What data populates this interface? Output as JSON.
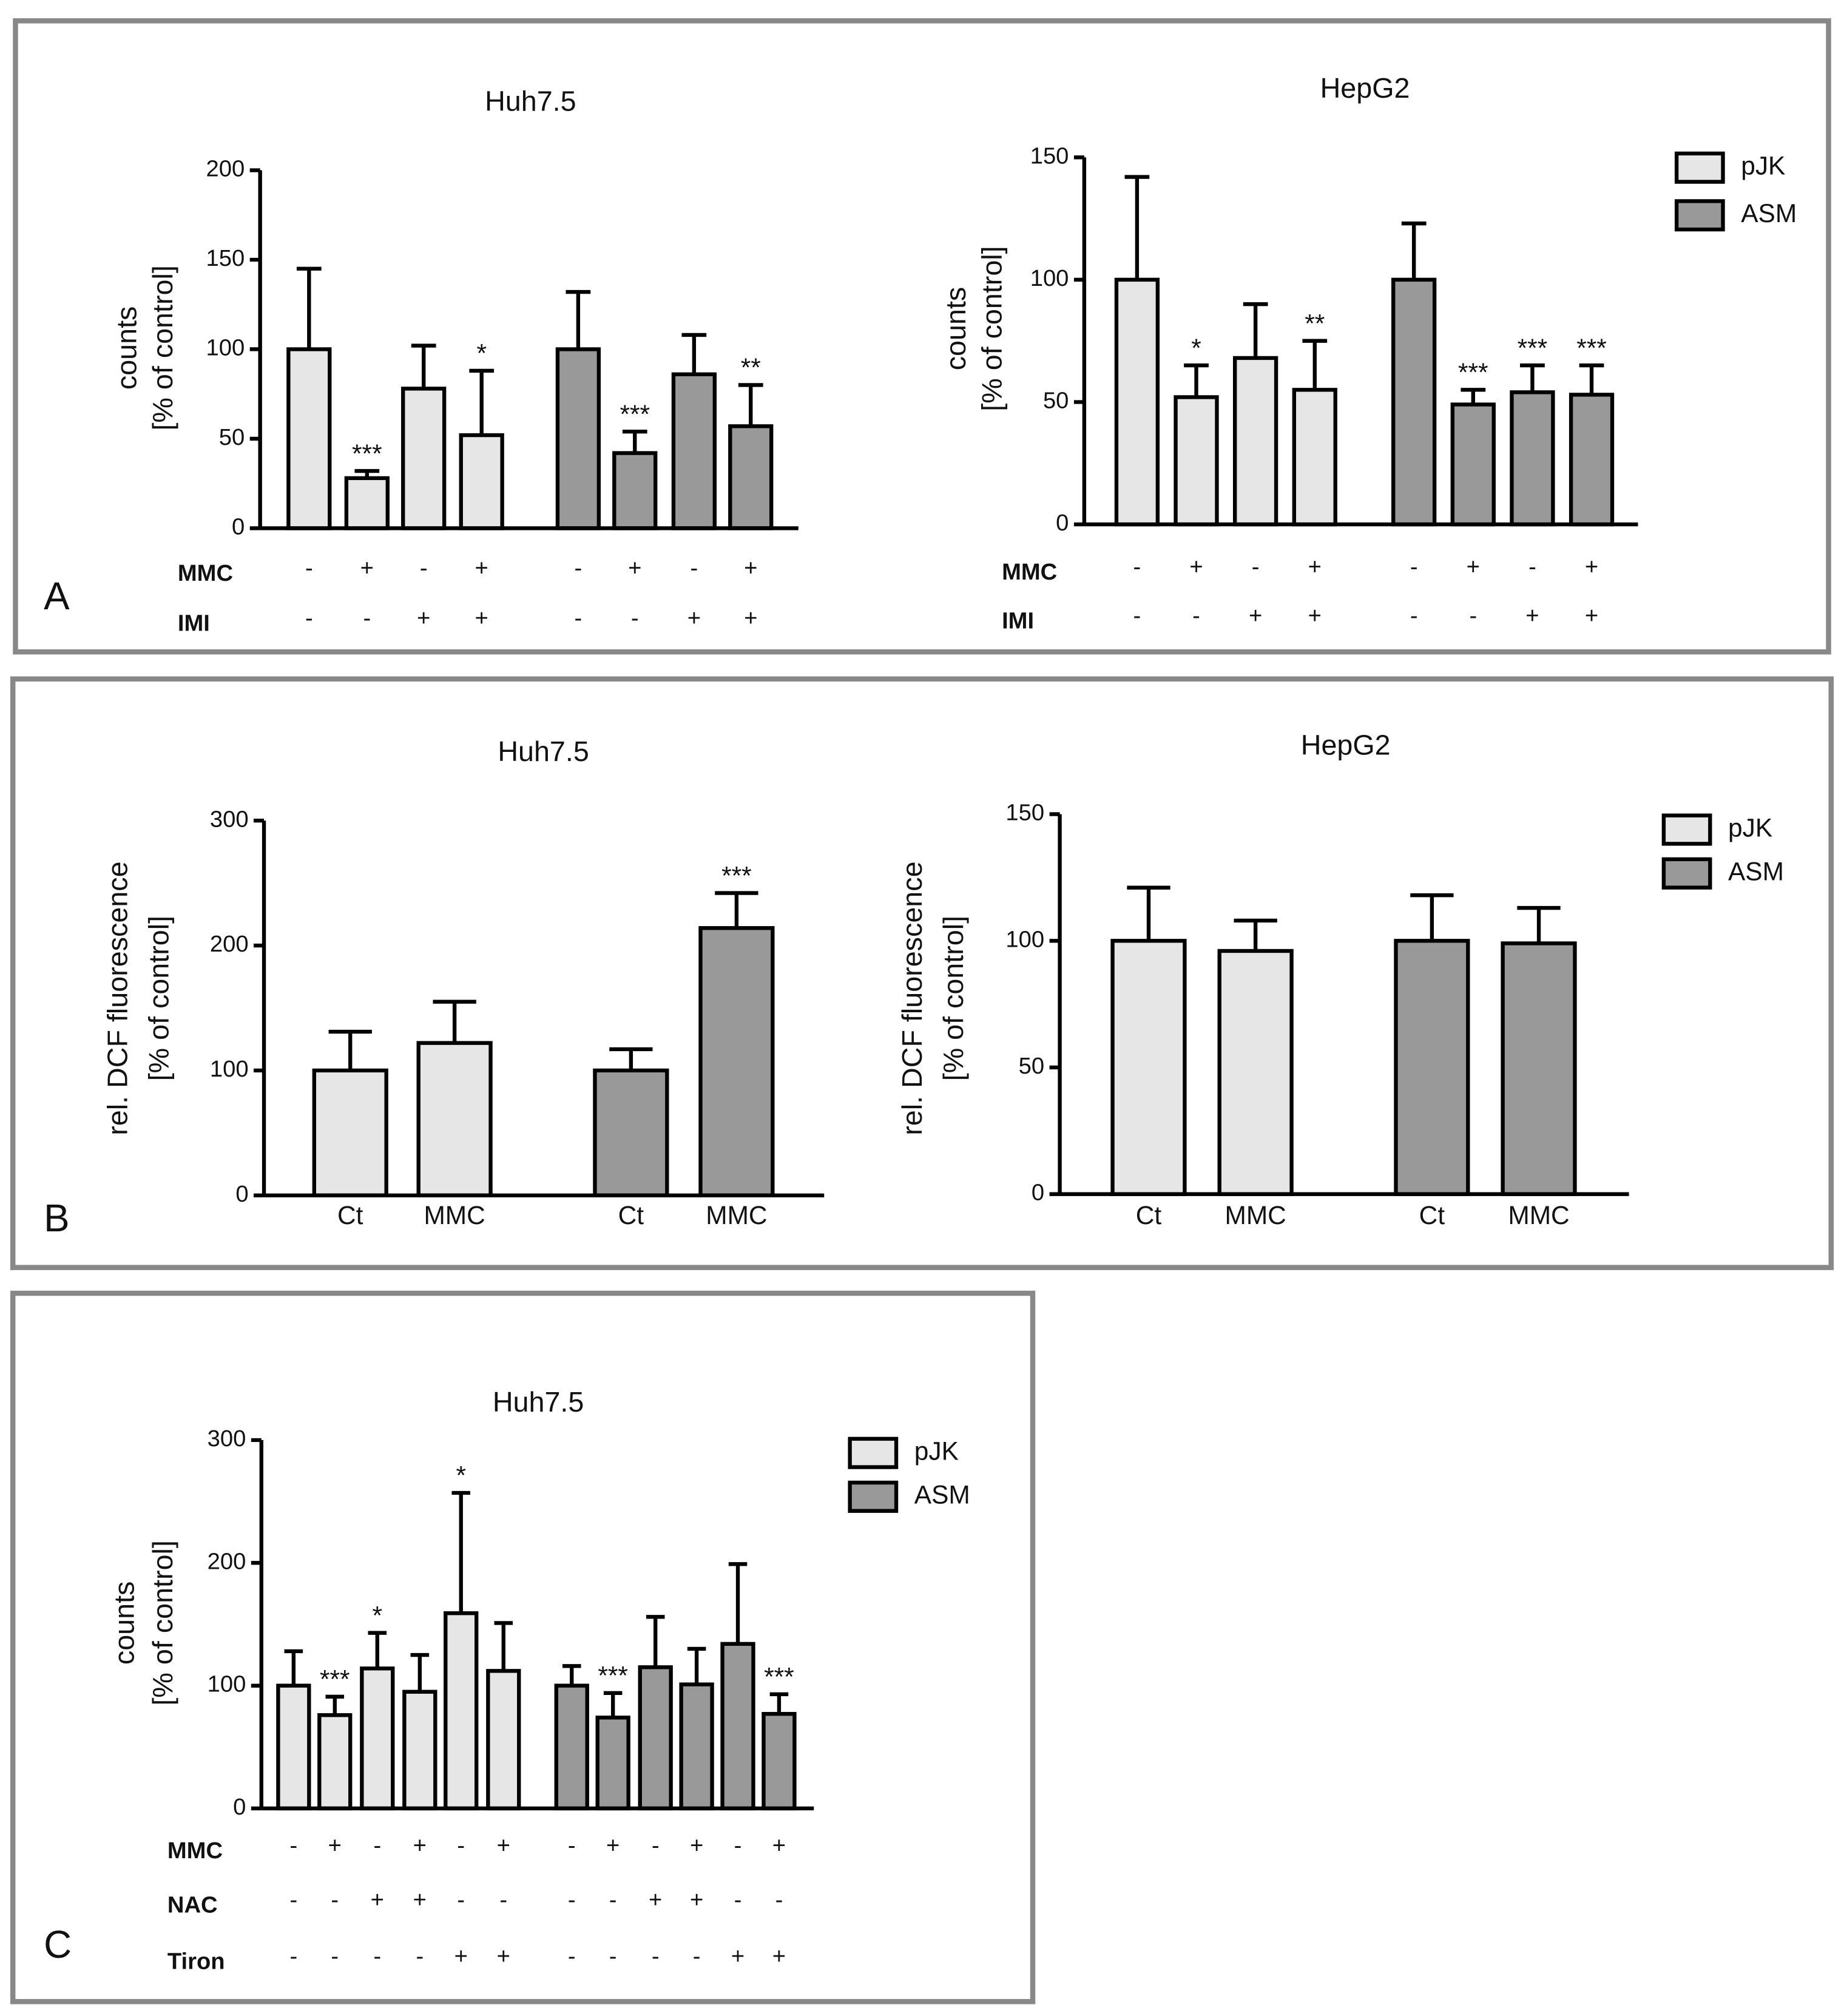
{
  "panels": [
    "A",
    "B",
    "C"
  ],
  "chart_data": [
    {
      "type": "bar",
      "title": "Huh7.5",
      "ylabel": [
        "counts",
        "[% of control]"
      ],
      "ylim": [
        0,
        200
      ],
      "yticks": [
        0,
        50,
        100,
        150,
        200
      ],
      "series": [
        {
          "color": "#e6e6e6",
          "values": [
            100,
            28,
            78,
            52
          ],
          "errors": [
            45,
            4,
            24,
            36
          ],
          "stars": [
            null,
            "***",
            null,
            "*"
          ]
        },
        {
          "color": "#999999",
          "values": [
            100,
            42,
            86,
            57
          ],
          "errors": [
            32,
            12,
            22,
            23
          ],
          "stars": [
            null,
            "***",
            null,
            "**"
          ]
        }
      ],
      "rows": [
        {
          "label": "MMC",
          "signs": [
            "-",
            "+",
            "-",
            "+",
            "-",
            "+",
            "-",
            "+"
          ]
        },
        {
          "label": "IMI",
          "signs": [
            "-",
            "-",
            "+",
            "+",
            "-",
            "-",
            "+",
            "+"
          ]
        }
      ]
    },
    {
      "type": "bar",
      "title": "HepG2",
      "ylabel": [
        "counts",
        "[% of control]"
      ],
      "ylim": [
        0,
        150
      ],
      "yticks": [
        0,
        50,
        100,
        150
      ],
      "series": [
        {
          "name": "pJK",
          "color": "#e6e6e6",
          "values": [
            100,
            52,
            68,
            55
          ],
          "errors": [
            42,
            13,
            22,
            20
          ],
          "stars": [
            null,
            "*",
            null,
            "**"
          ]
        },
        {
          "name": "ASM",
          "color": "#999999",
          "values": [
            100,
            49,
            54,
            53
          ],
          "errors": [
            23,
            6,
            11,
            12
          ],
          "stars": [
            null,
            "***",
            "***",
            "***"
          ]
        }
      ],
      "rows": [
        {
          "label": "MMC",
          "signs": [
            "-",
            "+",
            "-",
            "+",
            "-",
            "+",
            "-",
            "+"
          ]
        },
        {
          "label": "IMI",
          "signs": [
            "-",
            "-",
            "+",
            "+",
            "-",
            "-",
            "+",
            "+"
          ]
        }
      ]
    },
    {
      "type": "bar",
      "title": "Huh7.5",
      "ylabel": [
        "rel. DCF fluorescence",
        "[% of control]"
      ],
      "ylim": [
        0,
        300
      ],
      "yticks": [
        0,
        100,
        200,
        300
      ],
      "categories": [
        "Ct",
        "MMC"
      ],
      "series": [
        {
          "color": "#e6e6e6",
          "values": [
            100,
            122
          ],
          "errors": [
            31,
            33
          ],
          "stars": [
            null,
            null
          ]
        },
        {
          "color": "#999999",
          "values": [
            100,
            214
          ],
          "errors": [
            17,
            28
          ],
          "stars": [
            null,
            "***"
          ]
        }
      ]
    },
    {
      "type": "bar",
      "title": "HepG2",
      "ylabel": [
        "rel. DCF fluorescence",
        "[% of control]"
      ],
      "ylim": [
        0,
        150
      ],
      "yticks": [
        0,
        50,
        100,
        150
      ],
      "categories": [
        "Ct",
        "MMC"
      ],
      "series": [
        {
          "name": "pJK",
          "color": "#e6e6e6",
          "values": [
            100,
            96
          ],
          "errors": [
            21,
            12
          ],
          "stars": [
            null,
            null
          ]
        },
        {
          "name": "ASM",
          "color": "#999999",
          "values": [
            100,
            99
          ],
          "errors": [
            18,
            14
          ],
          "stars": [
            null,
            null
          ]
        }
      ]
    },
    {
      "type": "bar",
      "title": "Huh7.5",
      "ylabel": [
        "counts",
        "[% of control]"
      ],
      "ylim": [
        0,
        300
      ],
      "yticks": [
        0,
        100,
        200,
        300
      ],
      "series": [
        {
          "name": "pJK",
          "color": "#e6e6e6",
          "values": [
            100,
            76,
            114,
            95,
            159,
            112
          ],
          "errors": [
            28,
            15,
            29,
            30,
            98,
            39
          ],
          "stars": [
            null,
            "***",
            "*",
            null,
            "*",
            null
          ]
        },
        {
          "name": "ASM",
          "color": "#999999",
          "values": [
            100,
            74,
            115,
            101,
            134,
            77
          ],
          "errors": [
            16,
            20,
            41,
            29,
            65,
            16
          ],
          "stars": [
            null,
            "***",
            null,
            null,
            null,
            "***"
          ]
        }
      ],
      "rows": [
        {
          "label": "MMC",
          "signs": [
            "-",
            "+",
            "-",
            "+",
            "-",
            "+",
            "-",
            "+",
            "-",
            "+",
            "-",
            "+"
          ]
        },
        {
          "label": "NAC",
          "signs": [
            "-",
            "-",
            "+",
            "+",
            "-",
            "-",
            "-",
            "-",
            "+",
            "+",
            "-",
            "-"
          ]
        },
        {
          "label": "Tiron",
          "signs": [
            "-",
            "-",
            "-",
            "-",
            "+",
            "+",
            "-",
            "-",
            "-",
            "-",
            "+",
            "+"
          ]
        }
      ]
    }
  ]
}
